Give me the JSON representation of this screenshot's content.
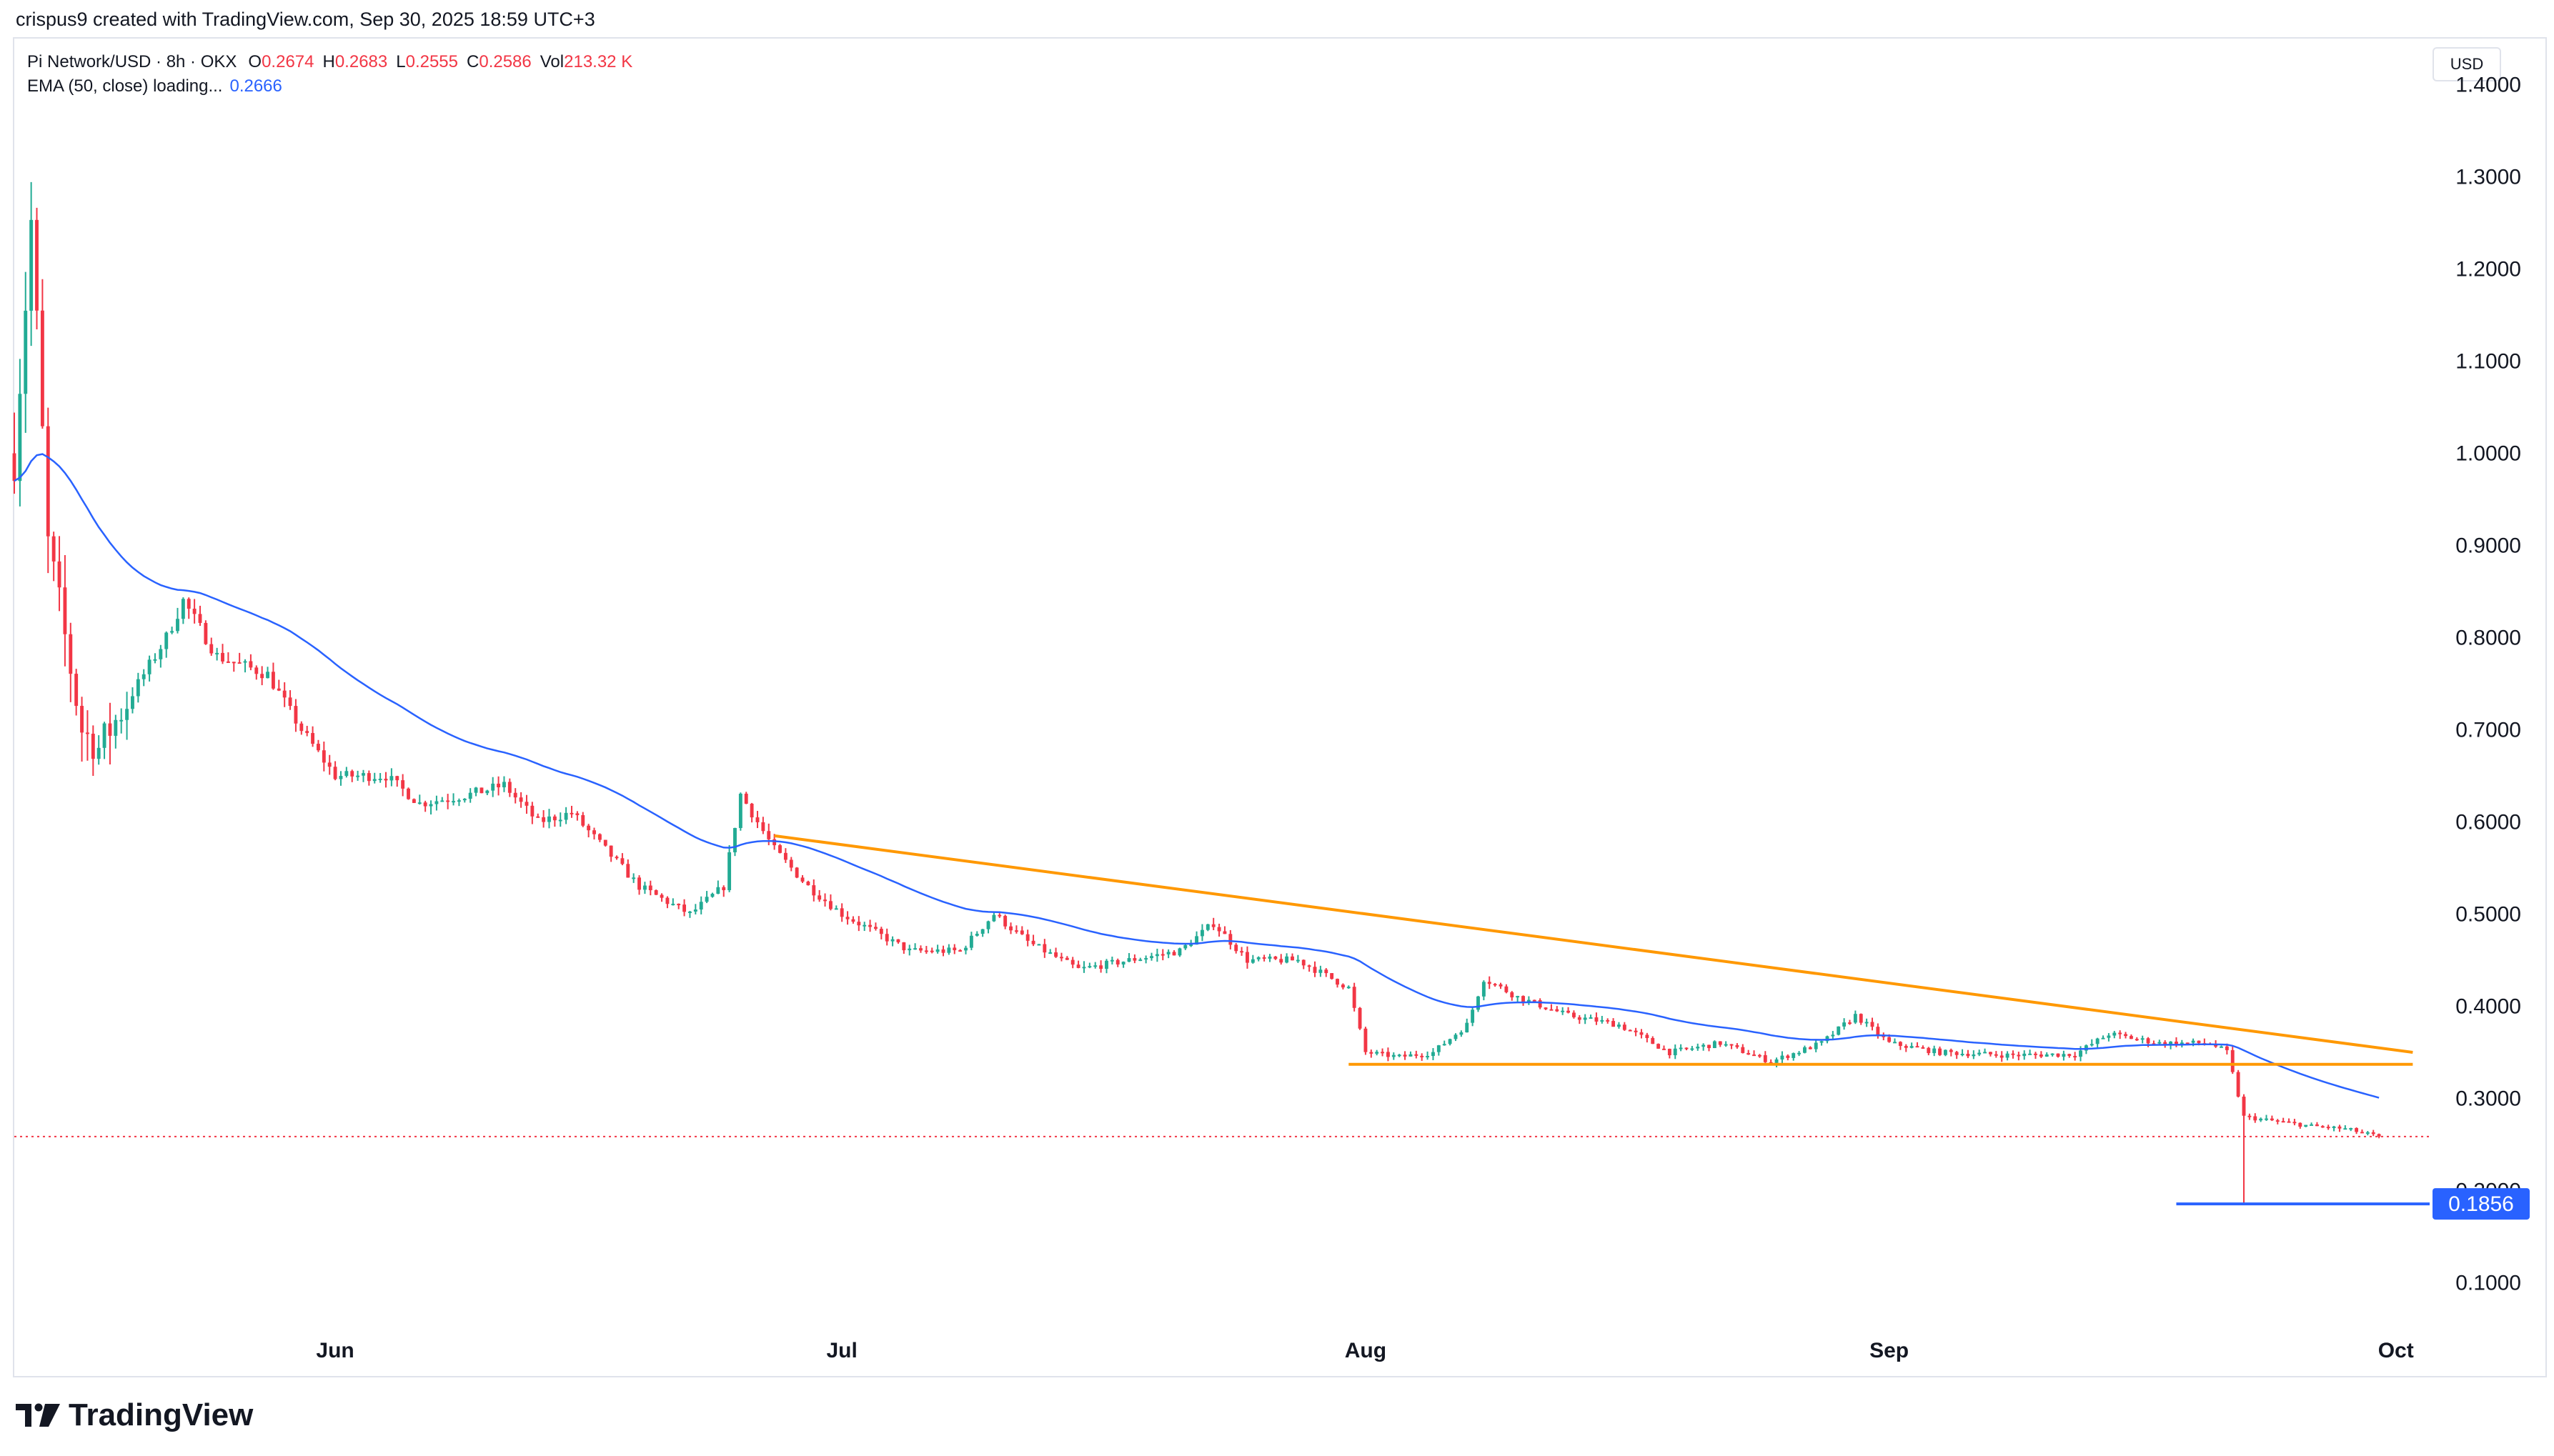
{
  "caption": "crispus9 created with TradingView.com, Sep 30, 2025 18:59 UTC+3",
  "legend": {
    "symbol": "Pi Network/USD · 8h · OKX",
    "open_label": "O",
    "open": "0.2674",
    "high_label": "H",
    "high": "0.2683",
    "low_label": "L",
    "low": "0.2555",
    "close_label": "C",
    "close": "0.2586",
    "vol_label": "Vol",
    "vol": "213.32 K",
    "ema_label": "EMA (50, close) loading...",
    "ema_value": "0.2666"
  },
  "currency": "USD",
  "logo_text": "TradingView",
  "colors": {
    "up": "#22ab94",
    "down": "#f23645",
    "ema": "#2962ff",
    "trendline": "#ff9800",
    "price_line": "#f23645",
    "low_marker": "#2962ff"
  },
  "chart_data": {
    "type": "candlestick",
    "title": "Pi Network/USD · 8h · OKX",
    "xlabel": "",
    "ylabel": "USD",
    "y_axis_ticks": [
      "1.4000",
      "1.3000",
      "1.2000",
      "1.1000",
      "1.0000",
      "0.9000",
      "0.8000",
      "0.7000",
      "0.6000",
      "0.5000",
      "0.4000",
      "0.3000",
      "0.2000",
      "0.1000"
    ],
    "ylim": [
      0.05,
      1.45
    ],
    "x_axis_ticks": [
      "Jun",
      "Jul",
      "Aug",
      "Sep",
      "Oct"
    ],
    "x_axis_tick_dates": [
      "2025-06-01",
      "2025-07-01",
      "2025-08-01",
      "2025-09-01",
      "2025-10-01"
    ],
    "xlim": [
      "2025-05-13",
      "2025-10-03"
    ],
    "grid": false,
    "current_price": "0.2586",
    "marked_low": "0.1856",
    "price_path": [
      {
        "date": "2025-05-13",
        "close": 1.0
      },
      {
        "date": "2025-05-14",
        "close": 1.25
      },
      {
        "date": "2025-05-15",
        "close": 0.9
      },
      {
        "date": "2025-05-17",
        "close": 0.7
      },
      {
        "date": "2025-05-18",
        "close": 0.68
      },
      {
        "date": "2025-05-20",
        "close": 0.74
      },
      {
        "date": "2025-05-22",
        "close": 0.8
      },
      {
        "date": "2025-05-23",
        "close": 0.84
      },
      {
        "date": "2025-05-25",
        "close": 0.78
      },
      {
        "date": "2025-05-28",
        "close": 0.76
      },
      {
        "date": "2025-05-30",
        "close": 0.7
      },
      {
        "date": "2025-06-01",
        "close": 0.65
      },
      {
        "date": "2025-06-04",
        "close": 0.65
      },
      {
        "date": "2025-06-06",
        "close": 0.62
      },
      {
        "date": "2025-06-09",
        "close": 0.63
      },
      {
        "date": "2025-06-11",
        "close": 0.64
      },
      {
        "date": "2025-06-13",
        "close": 0.6
      },
      {
        "date": "2025-06-15",
        "close": 0.61
      },
      {
        "date": "2025-06-17",
        "close": 0.57
      },
      {
        "date": "2025-06-19",
        "close": 0.53
      },
      {
        "date": "2025-06-22",
        "close": 0.5
      },
      {
        "date": "2025-06-24",
        "close": 0.53
      },
      {
        "date": "2025-06-25",
        "close": 0.63
      },
      {
        "date": "2025-06-27",
        "close": 0.57
      },
      {
        "date": "2025-06-29",
        "close": 0.53
      },
      {
        "date": "2025-07-01",
        "close": 0.5
      },
      {
        "date": "2025-07-05",
        "close": 0.46
      },
      {
        "date": "2025-07-08",
        "close": 0.46
      },
      {
        "date": "2025-07-10",
        "close": 0.5
      },
      {
        "date": "2025-07-12",
        "close": 0.47
      },
      {
        "date": "2025-07-15",
        "close": 0.44
      },
      {
        "date": "2025-07-18",
        "close": 0.45
      },
      {
        "date": "2025-07-21",
        "close": 0.46
      },
      {
        "date": "2025-07-23",
        "close": 0.49
      },
      {
        "date": "2025-07-25",
        "close": 0.45
      },
      {
        "date": "2025-07-28",
        "close": 0.45
      },
      {
        "date": "2025-07-31",
        "close": 0.42
      },
      {
        "date": "2025-08-01",
        "close": 0.35
      },
      {
        "date": "2025-08-03",
        "close": 0.345
      },
      {
        "date": "2025-08-05",
        "close": 0.35
      },
      {
        "date": "2025-08-07",
        "close": 0.38
      },
      {
        "date": "2025-08-08",
        "close": 0.43
      },
      {
        "date": "2025-08-10",
        "close": 0.41
      },
      {
        "date": "2025-08-13",
        "close": 0.39
      },
      {
        "date": "2025-08-16",
        "close": 0.38
      },
      {
        "date": "2025-08-19",
        "close": 0.35
      },
      {
        "date": "2025-08-22",
        "close": 0.36
      },
      {
        "date": "2025-08-25",
        "close": 0.34
      },
      {
        "date": "2025-08-28",
        "close": 0.36
      },
      {
        "date": "2025-08-30",
        "close": 0.39
      },
      {
        "date": "2025-09-01",
        "close": 0.36
      },
      {
        "date": "2025-09-04",
        "close": 0.35
      },
      {
        "date": "2025-09-08",
        "close": 0.347
      },
      {
        "date": "2025-09-12",
        "close": 0.348
      },
      {
        "date": "2025-09-14",
        "close": 0.37
      },
      {
        "date": "2025-09-17",
        "close": 0.36
      },
      {
        "date": "2025-09-20",
        "close": 0.36
      },
      {
        "date": "2025-09-21",
        "close": 0.35
      },
      {
        "date": "2025-09-22",
        "close": 0.28
      },
      {
        "date": "2025-09-24",
        "close": 0.275
      },
      {
        "date": "2025-09-26",
        "close": 0.27
      },
      {
        "date": "2025-09-28",
        "close": 0.267
      },
      {
        "date": "2025-09-30",
        "close": 0.2586
      }
    ],
    "annotations": {
      "descending_trendline": [
        {
          "date": "2025-06-27",
          "price": 0.585
        },
        {
          "date": "2025-10-02",
          "price": 0.35
        }
      ],
      "horizontal_support": [
        {
          "date": "2025-07-31",
          "price": 0.337
        },
        {
          "date": "2025-10-02",
          "price": 0.337
        }
      ],
      "low_marker": [
        {
          "date": "2025-09-18",
          "price": 0.1856
        },
        {
          "date": "2025-10-03",
          "price": 0.1856
        }
      ]
    }
  }
}
